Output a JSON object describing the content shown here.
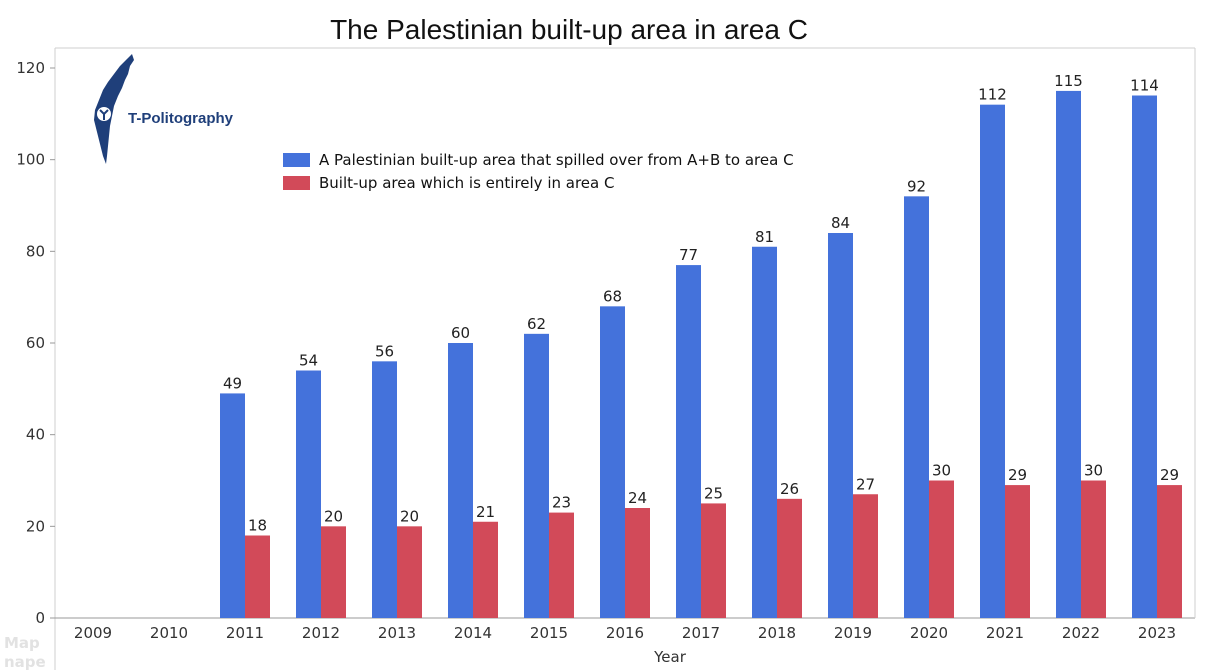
{
  "logo": {
    "text": "T-Politography"
  },
  "watermark": {
    "lines": [
      "Map",
      "nape"
    ]
  },
  "chart_data": {
    "type": "bar",
    "title": "The Palestinian built-up area in area C",
    "xlabel": "Year",
    "ylabel": "",
    "ylim": [
      0,
      120
    ],
    "yticks": [
      0,
      20,
      40,
      60,
      80,
      100,
      120
    ],
    "grid": false,
    "legend_position": "top-left",
    "categories": [
      "2009",
      "2010",
      "2011",
      "2012",
      "2013",
      "2014",
      "2015",
      "2016",
      "2017",
      "2018",
      "2019",
      "2020",
      "2021",
      "2022",
      "2023"
    ],
    "series": [
      {
        "name": "A Palestinian built-up area that spilled over from A+B to area C",
        "color": "#4472db",
        "values": [
          null,
          null,
          49,
          54,
          56,
          60,
          62,
          68,
          77,
          81,
          84,
          92,
          112,
          115,
          114
        ]
      },
      {
        "name": "Built-up area which is entirely in area C",
        "color": "#d24a59",
        "values": [
          null,
          null,
          18,
          20,
          20,
          21,
          23,
          24,
          25,
          26,
          27,
          30,
          29,
          30,
          29
        ]
      }
    ]
  }
}
